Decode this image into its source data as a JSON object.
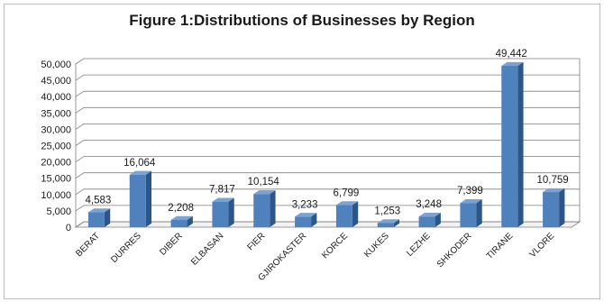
{
  "chart_data": {
    "type": "bar",
    "title": "Figure 1:Distributions of Businesses by Region",
    "xlabel": "",
    "ylabel": "",
    "categories": [
      "BERAT",
      "DURRES",
      "DIBER",
      "ELBASAN",
      "FIER",
      "GJIROKASTER",
      "KORCE",
      "KUKES",
      "LEZHE",
      "SHKODER",
      "TIRANE",
      "VLORE"
    ],
    "values": [
      4583,
      16064,
      2208,
      7817,
      10154,
      3233,
      6799,
      1253,
      3248,
      7399,
      49442,
      10759
    ],
    "value_labels": [
      "4,583",
      "16,064",
      "2,208",
      "7,817",
      "10,154",
      "3,233",
      "6,799",
      "1,253",
      "3,248",
      "7,399",
      "49,442",
      "10,759"
    ],
    "ylim": [
      0,
      50000
    ],
    "yticks": [
      0,
      5000,
      10000,
      15000,
      20000,
      25000,
      30000,
      35000,
      40000,
      45000,
      50000
    ],
    "ytick_labels": [
      "0",
      "5,000",
      "10,000",
      "15,000",
      "20,000",
      "25,000",
      "30,000",
      "35,000",
      "40,000",
      "45,000",
      "50,000"
    ],
    "grid": true,
    "style": "3d-column",
    "colors": {
      "bar_front": "#4f81bd",
      "bar_side": "#2c5588",
      "bar_top": "#7aa3d4",
      "grid": "#7f7f7f",
      "wall": "#ffffff"
    }
  }
}
